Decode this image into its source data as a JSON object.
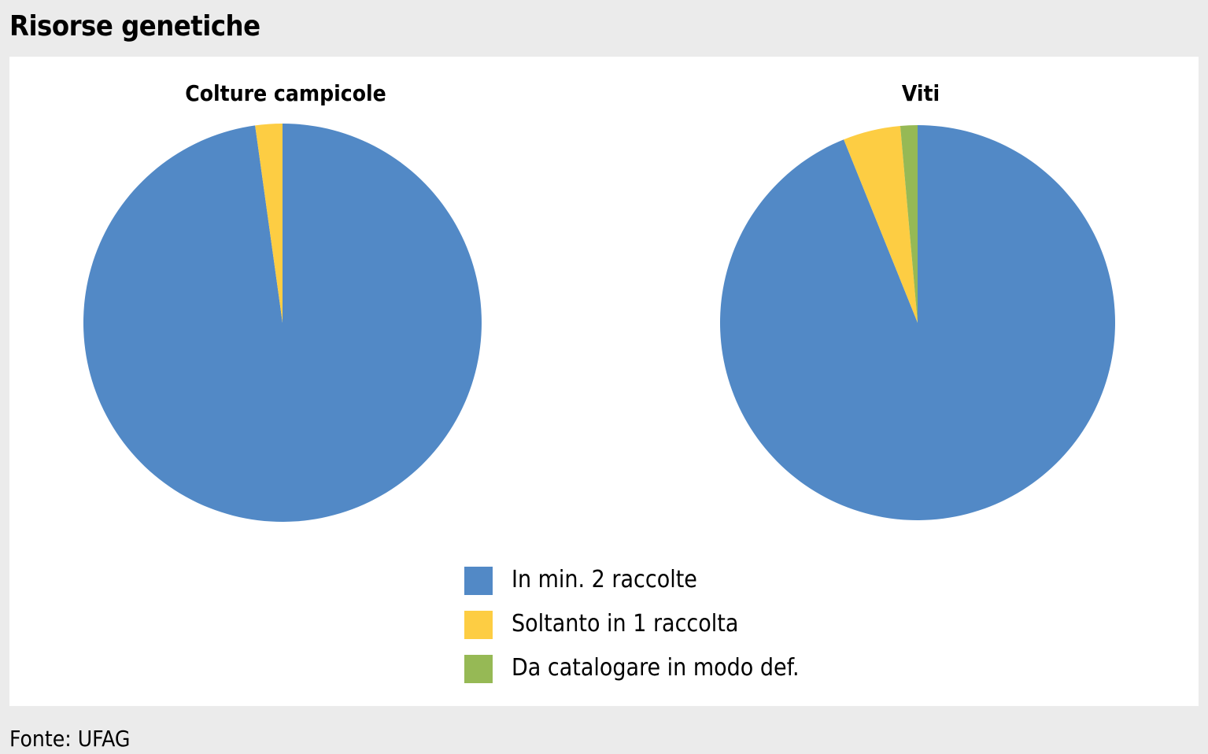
{
  "title": "Risorse genetiche",
  "source": "Fonte: UFAG",
  "chart_data": [
    {
      "type": "pie",
      "title": "Colture campicole",
      "categories": [
        "In min. 2 raccolte",
        "Soltanto in 1 raccolta",
        "Da catalogare in modo def."
      ],
      "values": [
        97.8,
        2.2,
        0
      ],
      "colors": [
        "#5289c6",
        "#fdcd43",
        "#96b955"
      ],
      "start": "top",
      "direction": "clockwise"
    },
    {
      "type": "pie",
      "title": "Viti",
      "categories": [
        "In min. 2 raccolte",
        "Soltanto in 1 raccolta",
        "Da catalogare in modo def."
      ],
      "values": [
        93.9,
        4.7,
        1.4
      ],
      "colors": [
        "#5289c6",
        "#fdcd43",
        "#96b955"
      ],
      "start": "top",
      "direction": "clockwise"
    }
  ],
  "legend": {
    "placement": "bottom-center",
    "items": [
      {
        "label": "In min. 2 raccolte",
        "color": "#5289c6"
      },
      {
        "label": "Soltanto in 1 raccolta",
        "color": "#fdcd43"
      },
      {
        "label": "Da catalogare in modo def.",
        "color": "#96b955"
      }
    ]
  }
}
